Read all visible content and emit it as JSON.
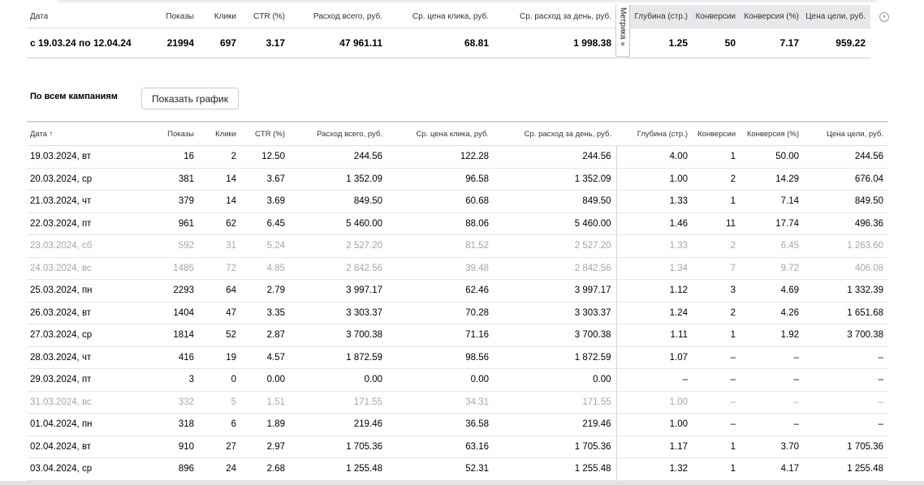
{
  "summary": {
    "headers": [
      "Дата",
      "Показы",
      "Клики",
      "CTR (%)",
      "Расход всего, руб.",
      "Ср. цена клика, руб.",
      "Ср. расход за день, руб.",
      "",
      "Глубина (стр.)",
      "Конверсии",
      "Конверсия (%)",
      "Цена цели, руб."
    ],
    "values": [
      "с 19.03.24 по 12.04.24",
      "21994",
      "697",
      "3.17",
      "47 961.11",
      "68.81",
      "1 998.38",
      "",
      "1.25",
      "50",
      "7.17",
      "959.22"
    ],
    "metrika_label": "Метрика »",
    "shade_color": "#e8e8ec"
  },
  "section": {
    "title": "По всем кампаниям",
    "chart_button": "Показать график"
  },
  "table": {
    "headers": [
      "Дата ↑",
      "Показы",
      "Клики",
      "CTR (%)",
      "Расход всего, руб.",
      "Ср. цена клика, руб.",
      "Ср. расход за день, руб.",
      "Глубина (стр.)",
      "Конверсии",
      "Конверсия (%)",
      "Цена цели, руб."
    ],
    "rows": [
      {
        "weekend": false,
        "cells": [
          "19.03.2024, вт",
          "16",
          "2",
          "12.50",
          "244.56",
          "122.28",
          "244.56",
          "4.00",
          "1",
          "50.00",
          "244.56"
        ]
      },
      {
        "weekend": false,
        "cells": [
          "20.03.2024, ср",
          "381",
          "14",
          "3.67",
          "1 352.09",
          "96.58",
          "1 352.09",
          "1.00",
          "2",
          "14.29",
          "676.04"
        ]
      },
      {
        "weekend": false,
        "cells": [
          "21.03.2024, чт",
          "379",
          "14",
          "3.69",
          "849.50",
          "60.68",
          "849.50",
          "1.33",
          "1",
          "7.14",
          "849.50"
        ]
      },
      {
        "weekend": false,
        "cells": [
          "22.03.2024, пт",
          "961",
          "62",
          "6.45",
          "5 460.00",
          "88.06",
          "5 460.00",
          "1.46",
          "11",
          "17.74",
          "496.36"
        ]
      },
      {
        "weekend": true,
        "cells": [
          "23.03.2024, сб",
          "592",
          "31",
          "5.24",
          "2 527.20",
          "81.52",
          "2 527.20",
          "1.33",
          "2",
          "6.45",
          "1 263.60"
        ]
      },
      {
        "weekend": true,
        "cells": [
          "24.03.2024, вс",
          "1485",
          "72",
          "4.85",
          "2 842.56",
          "39.48",
          "2 842.56",
          "1.34",
          "7",
          "9.72",
          "406.08"
        ]
      },
      {
        "weekend": false,
        "cells": [
          "25.03.2024, пн",
          "2293",
          "64",
          "2.79",
          "3 997.17",
          "62.46",
          "3 997.17",
          "1.12",
          "3",
          "4.69",
          "1 332.39"
        ]
      },
      {
        "weekend": false,
        "cells": [
          "26.03.2024, вт",
          "1404",
          "47",
          "3.35",
          "3 303.37",
          "70.28",
          "3 303.37",
          "1.24",
          "2",
          "4.26",
          "1 651.68"
        ]
      },
      {
        "weekend": false,
        "cells": [
          "27.03.2024, ср",
          "1814",
          "52",
          "2.87",
          "3 700.38",
          "71.16",
          "3 700.38",
          "1.11",
          "1",
          "1.92",
          "3 700.38"
        ]
      },
      {
        "weekend": false,
        "cells": [
          "28.03.2024, чт",
          "416",
          "19",
          "4.57",
          "1 872.59",
          "98.56",
          "1 872.59",
          "1.07",
          "–",
          "–",
          "–"
        ]
      },
      {
        "weekend": false,
        "cells": [
          "29.03.2024, пт",
          "3",
          "0",
          "0.00",
          "0.00",
          "0.00",
          "0.00",
          "–",
          "–",
          "–",
          "–"
        ]
      },
      {
        "weekend": true,
        "cells": [
          "31.03.2024, вс",
          "332",
          "5",
          "1.51",
          "171.55",
          "34.31",
          "171.55",
          "1.00",
          "–",
          "–",
          "–"
        ]
      },
      {
        "weekend": false,
        "cells": [
          "01.04.2024, пн",
          "318",
          "6",
          "1.89",
          "219.46",
          "36.58",
          "219.46",
          "1.00",
          "–",
          "–",
          "–"
        ]
      },
      {
        "weekend": false,
        "cells": [
          "02.04.2024, вт",
          "910",
          "27",
          "2.97",
          "1 705.36",
          "63.16",
          "1 705.36",
          "1.17",
          "1",
          "3.70",
          "1 705.36"
        ]
      },
      {
        "weekend": false,
        "cells": [
          "03.04.2024, ср",
          "896",
          "24",
          "2.68",
          "1 255.48",
          "52.31",
          "1 255.48",
          "1.32",
          "1",
          "4.17",
          "1 255.48"
        ]
      }
    ],
    "weekend_color": "#a6a6a6"
  }
}
